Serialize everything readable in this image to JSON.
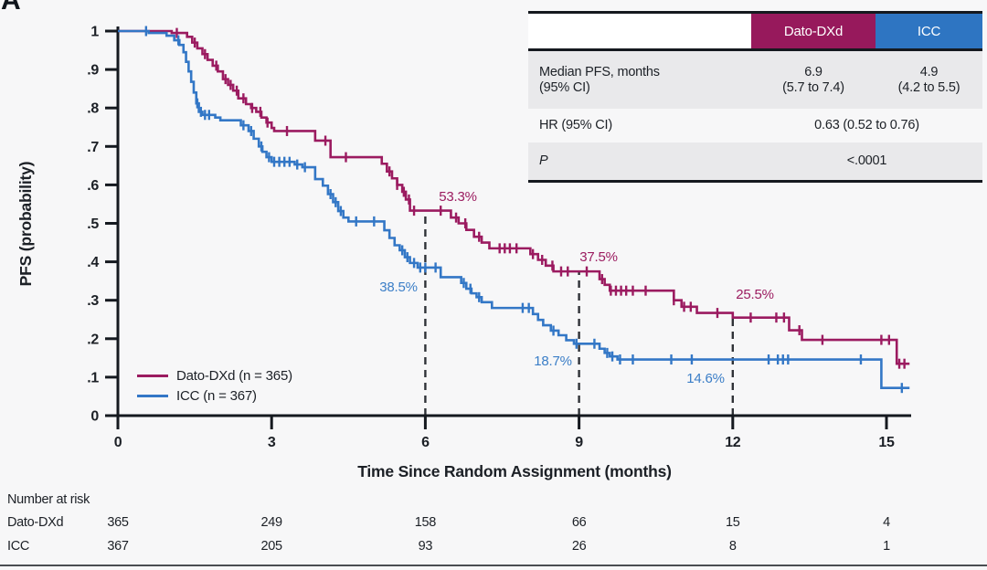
{
  "panel_label": "A",
  "colors": {
    "dato": "#97195c",
    "icc": "#2e75c2",
    "axis": "#15191f",
    "dashed": "#2f3237"
  },
  "table": {
    "header": {
      "dato": "Dato-DXd",
      "icc": "ICC"
    },
    "median_row": {
      "label_l1": "Median PFS, months",
      "label_l2": "(95% CI)",
      "dato_l1": "6.9",
      "dato_l2": "(5.7 to 7.4)",
      "icc_l1": "4.9",
      "icc_l2": "(4.2 to 5.5)"
    },
    "hr_row": {
      "label": "HR (95% CI)",
      "value": "0.63 (0.52 to 0.76)"
    },
    "p_row": {
      "label": "P",
      "value": "<.0001"
    }
  },
  "legend": {
    "items": [
      {
        "label": "Dato-DXd (n = 365)",
        "series": "dato"
      },
      {
        "label": "ICC (n = 367)",
        "series": "icc"
      }
    ]
  },
  "risk_table": {
    "title": "Number at risk",
    "rows": [
      {
        "label": "Dato-DXd",
        "values": [
          "365",
          "249",
          "158",
          "66",
          "15",
          "4"
        ]
      },
      {
        "label": "ICC",
        "values": [
          "367",
          "205",
          "93",
          "26",
          "8",
          "1"
        ]
      }
    ]
  },
  "chart_data": {
    "type": "line",
    "subtype": "kaplan-meier-step",
    "title": "",
    "xlabel": "Time Since Random Assignment (months)",
    "ylabel": "PFS (probability)",
    "xlim": [
      0,
      15.5
    ],
    "ylim": [
      0,
      1
    ],
    "x_ticks": [
      0,
      3,
      6,
      9,
      12,
      15
    ],
    "y_ticks": [
      0,
      0.1,
      0.2,
      0.3,
      0.4,
      0.5,
      0.6,
      0.7,
      0.8,
      0.9,
      1
    ],
    "y_tick_labels": [
      "0",
      ".1",
      ".2",
      ".3",
      ".4",
      ".5",
      ".6",
      ".7",
      ".8",
      ".9",
      "1"
    ],
    "grid": false,
    "dashed_lines_x": [
      6,
      9,
      12
    ],
    "series": [
      {
        "name": "Dato-DXd (n = 365)",
        "color": "#9b1b60",
        "end_x": 15.45,
        "steps": [
          [
            0,
            1.0
          ],
          [
            1.05,
            0.995
          ],
          [
            1.35,
            0.985
          ],
          [
            1.45,
            0.97
          ],
          [
            1.55,
            0.955
          ],
          [
            1.65,
            0.94
          ],
          [
            1.75,
            0.925
          ],
          [
            1.85,
            0.91
          ],
          [
            1.95,
            0.895
          ],
          [
            2.05,
            0.875
          ],
          [
            2.15,
            0.86
          ],
          [
            2.25,
            0.845
          ],
          [
            2.35,
            0.825
          ],
          [
            2.5,
            0.81
          ],
          [
            2.6,
            0.8
          ],
          [
            2.7,
            0.79
          ],
          [
            2.8,
            0.775
          ],
          [
            2.9,
            0.762
          ],
          [
            3.0,
            0.748
          ],
          [
            3.05,
            0.74
          ],
          [
            3.85,
            0.715
          ],
          [
            4.15,
            0.672
          ],
          [
            5.15,
            0.655
          ],
          [
            5.25,
            0.635
          ],
          [
            5.35,
            0.617
          ],
          [
            5.45,
            0.6
          ],
          [
            5.55,
            0.582
          ],
          [
            5.62,
            0.562
          ],
          [
            5.7,
            0.533
          ],
          [
            6.5,
            0.515
          ],
          [
            6.65,
            0.5
          ],
          [
            6.8,
            0.483
          ],
          [
            6.95,
            0.465
          ],
          [
            7.1,
            0.45
          ],
          [
            7.25,
            0.435
          ],
          [
            8.05,
            0.42
          ],
          [
            8.2,
            0.405
          ],
          [
            8.35,
            0.39
          ],
          [
            8.5,
            0.375
          ],
          [
            9.4,
            0.355
          ],
          [
            9.5,
            0.34
          ],
          [
            9.6,
            0.325
          ],
          [
            10.85,
            0.3
          ],
          [
            11.0,
            0.283
          ],
          [
            11.3,
            0.267
          ],
          [
            12.0,
            0.255
          ],
          [
            13.1,
            0.222
          ],
          [
            13.35,
            0.197
          ],
          [
            15.2,
            0.135
          ]
        ],
        "censors": [
          1.15,
          1.5,
          1.7,
          1.92,
          2.1,
          2.2,
          2.32,
          2.45,
          2.62,
          2.78,
          2.92,
          3.3,
          4.05,
          4.45,
          5.3,
          5.45,
          5.58,
          5.68,
          5.78,
          6.3,
          6.6,
          6.78,
          7.05,
          7.45,
          7.55,
          7.65,
          7.78,
          8.1,
          8.28,
          8.48,
          8.65,
          8.78,
          9.15,
          9.45,
          9.62,
          9.72,
          9.82,
          9.92,
          10.05,
          10.3,
          10.85,
          11.05,
          11.18,
          11.7,
          12.35,
          12.85,
          13.0,
          13.3,
          13.75,
          14.9,
          15.05,
          15.25,
          15.35
        ]
      },
      {
        "name": "ICC (n = 367)",
        "color": "#3377c6",
        "end_x": 15.45,
        "steps": [
          [
            0,
            1.0
          ],
          [
            0.6,
            0.995
          ],
          [
            0.95,
            0.988
          ],
          [
            1.1,
            0.976
          ],
          [
            1.2,
            0.964
          ],
          [
            1.28,
            0.945
          ],
          [
            1.33,
            0.92
          ],
          [
            1.38,
            0.895
          ],
          [
            1.43,
            0.868
          ],
          [
            1.48,
            0.84
          ],
          [
            1.53,
            0.812
          ],
          [
            1.58,
            0.79
          ],
          [
            1.65,
            0.782
          ],
          [
            1.9,
            0.775
          ],
          [
            2.0,
            0.768
          ],
          [
            2.4,
            0.755
          ],
          [
            2.55,
            0.74
          ],
          [
            2.65,
            0.72
          ],
          [
            2.75,
            0.7
          ],
          [
            2.82,
            0.686
          ],
          [
            2.9,
            0.672
          ],
          [
            3.0,
            0.66
          ],
          [
            3.45,
            0.653
          ],
          [
            3.6,
            0.646
          ],
          [
            3.85,
            0.615
          ],
          [
            4.0,
            0.598
          ],
          [
            4.1,
            0.576
          ],
          [
            4.2,
            0.555
          ],
          [
            4.3,
            0.532
          ],
          [
            4.4,
            0.515
          ],
          [
            4.5,
            0.505
          ],
          [
            5.2,
            0.482
          ],
          [
            5.3,
            0.462
          ],
          [
            5.4,
            0.443
          ],
          [
            5.5,
            0.43
          ],
          [
            5.6,
            0.412
          ],
          [
            5.7,
            0.397
          ],
          [
            5.85,
            0.385
          ],
          [
            6.3,
            0.36
          ],
          [
            6.7,
            0.345
          ],
          [
            6.8,
            0.33
          ],
          [
            6.9,
            0.318
          ],
          [
            7.0,
            0.308
          ],
          [
            7.1,
            0.295
          ],
          [
            7.3,
            0.28
          ],
          [
            8.1,
            0.264
          ],
          [
            8.2,
            0.249
          ],
          [
            8.3,
            0.235
          ],
          [
            8.45,
            0.221
          ],
          [
            8.6,
            0.209
          ],
          [
            8.75,
            0.196
          ],
          [
            8.9,
            0.187
          ],
          [
            9.4,
            0.174
          ],
          [
            9.5,
            0.163
          ],
          [
            9.6,
            0.154
          ],
          [
            9.75,
            0.146
          ],
          [
            14.9,
            0.072
          ]
        ],
        "censors": [
          0.55,
          1.18,
          1.55,
          1.62,
          1.7,
          1.78,
          2.45,
          2.6,
          2.8,
          2.95,
          3.05,
          3.15,
          3.25,
          3.35,
          3.5,
          3.65,
          4.15,
          4.25,
          4.35,
          4.65,
          5.0,
          5.55,
          5.65,
          5.78,
          5.9,
          6.0,
          6.2,
          6.75,
          6.88,
          7.05,
          7.9,
          8.02,
          8.5,
          8.95,
          9.3,
          9.55,
          9.65,
          9.8,
          10.05,
          10.8,
          11.2,
          12.7,
          12.88,
          12.98,
          13.08,
          14.5,
          15.3
        ]
      }
    ],
    "annotations": [
      {
        "text": "53.3%",
        "series": "dato",
        "x": 6
      },
      {
        "text": "37.5%",
        "series": "dato",
        "x": 9
      },
      {
        "text": "25.5%",
        "series": "dato",
        "x": 12
      },
      {
        "text": "38.5%",
        "series": "icc",
        "x": 6
      },
      {
        "text": "18.7%",
        "series": "icc",
        "x": 9
      },
      {
        "text": "14.6%",
        "series": "icc",
        "x": 12
      }
    ],
    "legend_position": "lower-left-inside"
  }
}
